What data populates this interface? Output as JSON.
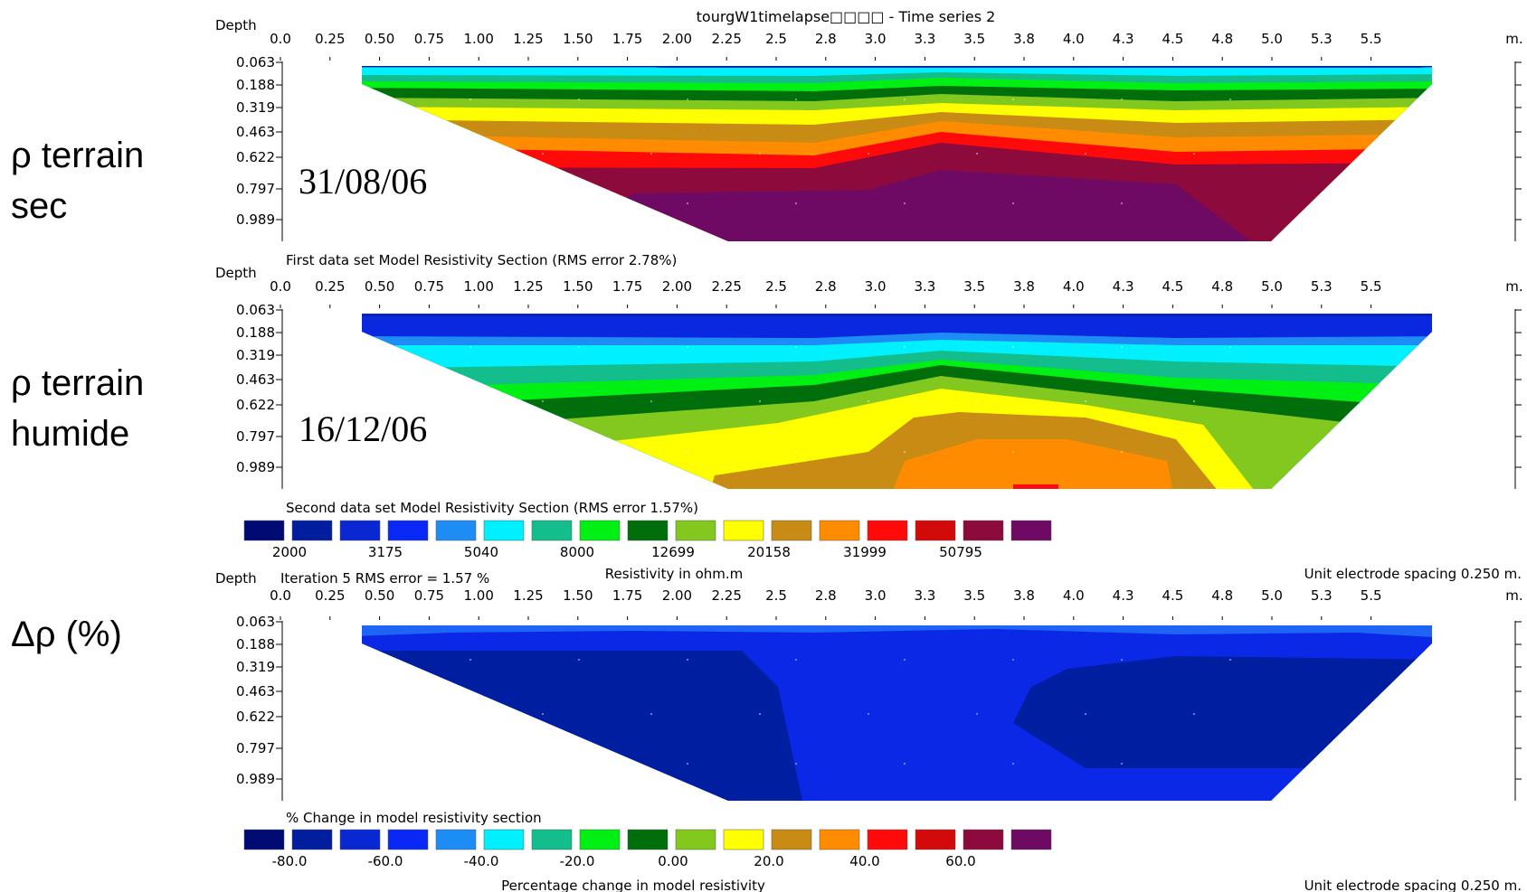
{
  "window_title": "tourgW1timelapse□□□□ - Time series 2",
  "side_labels": [
    {
      "line1": "ρ terrain",
      "line2": "sec"
    },
    {
      "line1": "ρ terrain",
      "line2": "humide"
    },
    {
      "line1": "Δρ (%)",
      "line2": ""
    }
  ],
  "panel_common": {
    "depth_label": "Depth",
    "x_unit": "m.",
    "x_ticks": [
      "0.0",
      "0.25",
      "0.50",
      "0.75",
      "1.00",
      "1.25",
      "1.50",
      "1.75",
      "2.00",
      "2.25",
      "2.5",
      "2.8",
      "3.0",
      "3.3",
      "3.5",
      "3.8",
      "4.0",
      "4.3",
      "4.5",
      "4.8",
      "5.0",
      "5.3",
      "5.5"
    ],
    "depth_ticks": [
      "0.063",
      "0.188",
      "0.319",
      "0.463",
      "0.622",
      "0.797",
      "0.989"
    ]
  },
  "panels": [
    {
      "date": "31/08/06",
      "caption": "First data set Model Resistivity Section (RMS error 2.78%)",
      "iteration": ""
    },
    {
      "date": "16/12/06",
      "caption": "Second data set Model Resistivity Section (RMS error 1.57%)",
      "iteration": ""
    },
    {
      "date": "",
      "caption": "% Change in model resistivity section",
      "iteration": "Iteration 5 RMS error = 1.57 %"
    }
  ],
  "resistivity_scale": {
    "title": "Resistivity in ohm.m",
    "tick_labels": [
      "2000",
      "3175",
      "5040",
      "8000",
      "12699",
      "20158",
      "31999",
      "50795"
    ],
    "unit_spacing": "Unit electrode spacing 0.250 m."
  },
  "change_scale": {
    "title": "Percentage change in model resistivity",
    "tick_labels": [
      "-80.0",
      "-60.0",
      "-40.0",
      "-20.0",
      "0.00",
      "20.0",
      "40.0",
      "60.0"
    ],
    "unit_spacing": "Unit electrode spacing 0.250 m."
  },
  "colors": {
    "palette": [
      "#000a73",
      "#001e9e",
      "#0a28d2",
      "#0a28f5",
      "#1e8cf5",
      "#00f0ff",
      "#14be8c",
      "#00f014",
      "#006e0a",
      "#82c81e",
      "#ffff00",
      "#c88c14",
      "#ff8c00",
      "#ff0a0a",
      "#d20a0a",
      "#8c0a3c",
      "#6e0a64"
    ],
    "change_main": "#0a28e6",
    "change_deep": "#001ea0",
    "change_light": "#1e64f5"
  },
  "chart_data": [
    {
      "type": "heatmap",
      "title": "First data set Model Resistivity Section (RMS error 2.78%)",
      "xlabel": "m.",
      "ylabel": "Depth",
      "xlim": [
        0,
        5.5
      ],
      "ylim": [
        0.989,
        0.063
      ],
      "section_x_range": [
        0.375,
        5.375
      ],
      "x": [
        0.4,
        0.8,
        1.2,
        1.6,
        2.0,
        2.4,
        2.8,
        3.2,
        3.6,
        4.0,
        4.4,
        4.8,
        5.2
      ],
      "depths": [
        0.063,
        0.188,
        0.319,
        0.463,
        0.622,
        0.797,
        0.989
      ],
      "values": [
        [
          8000,
          3175,
          2000,
          2000,
          2000,
          2000,
          2000,
          2000,
          2000,
          2000,
          2000,
          3175,
          8000
        ],
        [
          12699,
          12699,
          12699,
          12699,
          12699,
          12699,
          12699,
          12699,
          12699,
          12699,
          12699,
          12699,
          12699
        ],
        [
          null,
          20158,
          20158,
          31999,
          31999,
          31999,
          31999,
          50795,
          31999,
          31999,
          31999,
          20158,
          null
        ],
        [
          null,
          31999,
          50795,
          50795,
          50795,
          50795,
          50795,
          80000,
          50795,
          50795,
          50795,
          31999,
          null
        ],
        [
          null,
          null,
          80000,
          80000,
          80000,
          80000,
          80000,
          101000,
          80000,
          80000,
          80000,
          null,
          null
        ],
        [
          null,
          null,
          null,
          101000,
          101000,
          101000,
          127000,
          127000,
          127000,
          127000,
          null,
          null,
          null
        ],
        [
          null,
          null,
          null,
          null,
          127000,
          127000,
          127000,
          127000,
          127000,
          null,
          null,
          null,
          null
        ]
      ]
    },
    {
      "type": "heatmap",
      "title": "Second data set Model Resistivity Section (RMS error 1.57%)",
      "xlabel": "m.",
      "ylabel": "Depth",
      "xlim": [
        0,
        5.5
      ],
      "ylim": [
        0.989,
        0.063
      ],
      "section_x_range": [
        0.375,
        5.375
      ],
      "x": [
        0.4,
        0.8,
        1.2,
        1.6,
        2.0,
        2.4,
        2.8,
        3.2,
        3.6,
        4.0,
        4.4,
        4.8,
        5.2
      ],
      "depths": [
        0.063,
        0.188,
        0.319,
        0.463,
        0.622,
        0.797,
        0.989
      ],
      "values": [
        [
          2000,
          1500,
          1500,
          1500,
          1500,
          1500,
          1500,
          1500,
          1500,
          1500,
          1500,
          2000,
          2000
        ],
        [
          3175,
          3175,
          3175,
          3175,
          3175,
          3175,
          3175,
          5040,
          3175,
          3175,
          3175,
          3175,
          3175
        ],
        [
          null,
          5040,
          5040,
          8000,
          8000,
          8000,
          12699,
          12699,
          12699,
          8000,
          8000,
          5040,
          null
        ],
        [
          null,
          8000,
          8000,
          12699,
          12699,
          12699,
          20158,
          20158,
          20158,
          12699,
          12699,
          8000,
          null
        ],
        [
          null,
          null,
          12699,
          20158,
          20158,
          20158,
          31999,
          31999,
          31999,
          20158,
          12699,
          null,
          null
        ],
        [
          null,
          null,
          null,
          31999,
          31999,
          31999,
          50795,
          50795,
          50795,
          31999,
          null,
          null,
          null
        ],
        [
          null,
          null,
          null,
          null,
          31999,
          50795,
          50795,
          50795,
          50795,
          null,
          null,
          null,
          null
        ]
      ]
    },
    {
      "type": "heatmap",
      "title": "% Change in model resistivity section",
      "subtitle": "Iteration 5 RMS error = 1.57 %",
      "xlabel": "m.",
      "ylabel": "Depth",
      "xlim": [
        0,
        5.5
      ],
      "ylim": [
        0.989,
        0.063
      ],
      "section_x_range": [
        0.375,
        5.375
      ],
      "x": [
        0.4,
        0.8,
        1.2,
        1.6,
        2.0,
        2.4,
        2.8,
        3.2,
        3.6,
        4.0,
        4.4,
        4.8,
        5.2
      ],
      "depths": [
        0.063,
        0.188,
        0.319,
        0.463,
        0.622,
        0.797,
        0.989
      ],
      "values": [
        [
          -50,
          -50,
          -55,
          -55,
          -55,
          -55,
          -55,
          -55,
          -55,
          -55,
          -55,
          -50,
          -50
        ],
        [
          -70,
          -70,
          -65,
          -65,
          -65,
          -55,
          -55,
          -65,
          -65,
          -65,
          -70,
          -70,
          -70
        ],
        [
          null,
          -70,
          -70,
          -70,
          -65,
          -60,
          -60,
          -60,
          -65,
          -70,
          -70,
          -70,
          null
        ],
        [
          null,
          -70,
          -70,
          -70,
          -70,
          -60,
          -60,
          -60,
          -60,
          -70,
          -70,
          -70,
          null
        ],
        [
          null,
          null,
          -70,
          -70,
          -70,
          -60,
          -60,
          -60,
          -60,
          -70,
          -70,
          null,
          null
        ],
        [
          null,
          null,
          null,
          -70,
          -70,
          -60,
          -60,
          -60,
          -60,
          -60,
          null,
          null,
          null
        ],
        [
          null,
          null,
          null,
          null,
          -70,
          -60,
          -60,
          -60,
          -60,
          null,
          null,
          null,
          null
        ]
      ]
    }
  ]
}
